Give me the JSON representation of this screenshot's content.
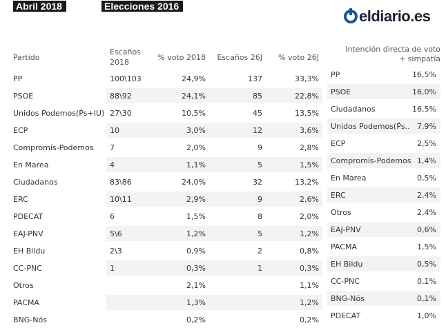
{
  "header": {
    "tag_left": "Abril 2018",
    "tag_right": "Elecciones 2016",
    "logo_text": "eldiario.es"
  },
  "colors": {
    "band": "#f3f3f3",
    "text": "#333333",
    "tag_bg": "#1a1a1a",
    "logo_blue": "#0f5a9c"
  },
  "table_left": {
    "headers": {
      "party": "Partido",
      "seats_2018": [
        "Escaños",
        "2018"
      ],
      "vote_2018": "% voto 2018",
      "seats_26j": "Escaños 26J",
      "vote_26j": "% voto 26J"
    },
    "rows": [
      {
        "party": "PP",
        "seats_2018": "100\\103",
        "vote_2018": "24,9%",
        "seats_26j": "137",
        "vote_26j": "33,3%"
      },
      {
        "party": "PSOE",
        "seats_2018": "88\\92",
        "vote_2018": "24,1%",
        "seats_26j": "85",
        "vote_26j": "22,8%"
      },
      {
        "party": "Unidos Podemos(Ṕs+IU)",
        "seats_2018": "27\\30",
        "vote_2018": "10,5%",
        "seats_26j": "45",
        "vote_26j": "13,5%"
      },
      {
        "party": "ECP",
        "seats_2018": "10",
        "vote_2018": "3,0%",
        "seats_26j": "12",
        "vote_26j": "3,6%"
      },
      {
        "party": "Compromís-Podemos",
        "seats_2018": "7",
        "vote_2018": "2,0%",
        "seats_26j": "9",
        "vote_26j": "2,8%"
      },
      {
        "party": "En Marea",
        "seats_2018": "4",
        "vote_2018": "1,1%",
        "seats_26j": "5",
        "vote_26j": "1,5%"
      },
      {
        "party": "Ciudadanos",
        "seats_2018": "83\\86",
        "vote_2018": "24,0%",
        "seats_26j": "32",
        "vote_26j": "13,2%"
      },
      {
        "party": "ERC",
        "seats_2018": "10\\11",
        "vote_2018": "2,9%",
        "seats_26j": "9",
        "vote_26j": "2,6%"
      },
      {
        "party": "PDECAT",
        "seats_2018": "6",
        "vote_2018": "1,5%",
        "seats_26j": "8",
        "vote_26j": "2,0%"
      },
      {
        "party": "EAJ-PNV",
        "seats_2018": "5\\6",
        "vote_2018": "1,2%",
        "seats_26j": "5",
        "vote_26j": "1,2%"
      },
      {
        "party": "EH Bildu",
        "seats_2018": "2\\3",
        "vote_2018": "0,9%",
        "seats_26j": "2",
        "vote_26j": "0,8%"
      },
      {
        "party": "CC-PNC",
        "seats_2018": "1",
        "vote_2018": "0,3%",
        "seats_26j": "1",
        "vote_26j": "0,3%"
      },
      {
        "party": "Otros",
        "seats_2018": "",
        "vote_2018": "2,1%",
        "seats_26j": "",
        "vote_26j": "1,1%"
      },
      {
        "party": "PACMA",
        "seats_2018": "",
        "vote_2018": "1,3%",
        "seats_26j": "",
        "vote_26j": "1,2%"
      },
      {
        "party": "BNG-Nós",
        "seats_2018": "",
        "vote_2018": "0,2%",
        "seats_26j": "",
        "vote_26j": "0,2%"
      }
    ]
  },
  "table_right": {
    "header": [
      "Intención directa de voto",
      "+ simpatía"
    ],
    "rows": [
      {
        "party": "PP",
        "value": "16,5%"
      },
      {
        "party": "PSOE",
        "value": "16,0%"
      },
      {
        "party": "Ciudadanos",
        "value": "16,5%"
      },
      {
        "party": "Unidos Podemos(Ṕs..",
        "value": "7,9%"
      },
      {
        "party": "ECP",
        "value": "2,5%"
      },
      {
        "party": "Compromís-Podemos",
        "value": "1,4%"
      },
      {
        "party": "En Marea",
        "value": "0,5%"
      },
      {
        "party": "ERC",
        "value": "2,4%"
      },
      {
        "party": "Otros",
        "value": "2,4%"
      },
      {
        "party": "EAJ-PNV",
        "value": "0,6%"
      },
      {
        "party": "PACMA",
        "value": "1,5%"
      },
      {
        "party": "EH Bildu",
        "value": "0,5%"
      },
      {
        "party": "CC-PNC",
        "value": "0,1%"
      },
      {
        "party": "BNG-Nós",
        "value": "0,1%"
      },
      {
        "party": "PDECAT",
        "value": "1,0%"
      }
    ]
  }
}
